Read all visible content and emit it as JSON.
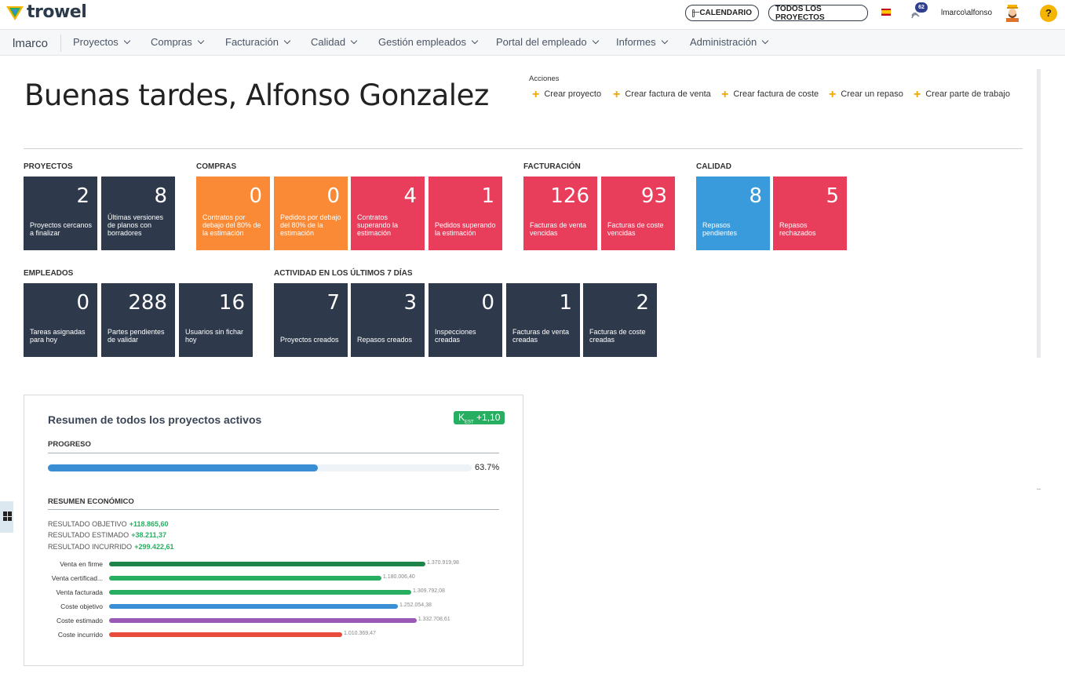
{
  "header": {
    "logo_text": "trowel",
    "calendar_label": "CALENDARIO",
    "all_projects_label": "TODOS LOS PROYECTOS",
    "notification_count": "62",
    "user_name": "lmarco\\alfonso",
    "help_label": "?",
    "language_icon": "spain-flag-icon"
  },
  "nav": {
    "brand": "lmarco",
    "items": [
      {
        "label": "Proyectos"
      },
      {
        "label": "Compras"
      },
      {
        "label": "Facturación"
      },
      {
        "label": "Calidad"
      },
      {
        "label": "Gestión empleados"
      },
      {
        "label": "Portal del empleado"
      },
      {
        "label": "Informes"
      },
      {
        "label": "Administración"
      }
    ]
  },
  "greeting": "Buenas tardes, Alfonso Gonzalez",
  "actions": {
    "title": "Acciones",
    "items": [
      {
        "label": "Crear proyecto"
      },
      {
        "label": "Crear factura de venta"
      },
      {
        "label": "Crear factura de coste"
      },
      {
        "label": "Crear un repaso"
      },
      {
        "label": "Crear parte de trabajo"
      }
    ]
  },
  "sections": {
    "proyectos": {
      "title": "PROYECTOS",
      "tiles": [
        {
          "value": "2",
          "label": "Proyectos cercanos a finalizar"
        },
        {
          "value": "8",
          "label": "Últimas versiones de planos con borradores"
        }
      ]
    },
    "compras": {
      "title": "COMPRAS",
      "tiles": [
        {
          "value": "0",
          "label": "Contratos por debajo del 80% de la estimación"
        },
        {
          "value": "0",
          "label": "Pedidos por debajo del 80% de la estimación"
        },
        {
          "value": "4",
          "label": "Contratos superando la estimación"
        },
        {
          "value": "1",
          "label": "Pedidos superando la estimación"
        }
      ]
    },
    "facturacion": {
      "title": "FACTURACIÓN",
      "tiles": [
        {
          "value": "126",
          "label": "Facturas de venta vencidas"
        },
        {
          "value": "93",
          "label": "Facturas de coste vencidas"
        }
      ]
    },
    "calidad": {
      "title": "CALIDAD",
      "tiles": [
        {
          "value": "8",
          "label": "Repasos pendientes"
        },
        {
          "value": "5",
          "label": "Repasos rechazados"
        }
      ]
    },
    "empleados": {
      "title": "EMPLEADOS",
      "tiles": [
        {
          "value": "0",
          "label": "Tareas asignadas para hoy"
        },
        {
          "value": "288",
          "label": "Partes pendientes de validar"
        },
        {
          "value": "16",
          "label": "Usuarios sin fichar hoy"
        }
      ]
    },
    "actividad": {
      "title": "ACTIVIDAD EN LOS ÚLTIMOS 7 DÍAS",
      "tiles": [
        {
          "value": "7",
          "label": "Proyectos creados"
        },
        {
          "value": "3",
          "label": "Repasos creados"
        },
        {
          "value": "0",
          "label": "Inspecciones creadas"
        },
        {
          "value": "1",
          "label": "Facturas de venta creadas"
        },
        {
          "value": "2",
          "label": "Facturas de coste creadas"
        }
      ]
    }
  },
  "summary": {
    "title": "Resumen de todos los proyectos activos",
    "kest_prefix": "K",
    "kest_sub": "EST",
    "kest_value": "+1,10",
    "progress_title": "PROGRESO",
    "progress_fraction": 0.637,
    "progress_label": "63.7%",
    "economic_title": "RESUMEN ECONÓMICO",
    "results": [
      {
        "label": "RESULTADO OBJETIVO",
        "value": "+118.865,60"
      },
      {
        "label": "RESULTADO ESTIMADO",
        "value": "+38.211,37"
      },
      {
        "label": "RESULTADO INCURRIDO",
        "value": "+299.422,61"
      }
    ],
    "bars": [
      {
        "label": "Venta en firme",
        "value": 1370919.98,
        "display": "1.370.919,98",
        "color": "#1e8449"
      },
      {
        "label": "Venta certificad...",
        "value": 1180006.4,
        "display": "1.180.006,40",
        "color": "#27ae60"
      },
      {
        "label": "Venta facturada",
        "value": 1309792.08,
        "display": "1.309.792,08",
        "color": "#27ae60"
      },
      {
        "label": "Coste objetivo",
        "value": 1252054.38,
        "display": "1.252.054,38",
        "color": "#3a8fd4"
      },
      {
        "label": "Coste estimado",
        "value": 1332708.61,
        "display": "1.332.708,61",
        "color": "#9b59b6"
      },
      {
        "label": "Coste incurrido",
        "value": 1010369.47,
        "display": "1.010.369,47",
        "color": "#e74c3c"
      }
    ]
  },
  "colors": {
    "navy": "#2e3a4c",
    "orange": "#fa8a35",
    "red": "#e83d5b",
    "blue": "#3a9bdc",
    "accent_plus": "#f0a800",
    "kest_green": "#27ae60"
  }
}
